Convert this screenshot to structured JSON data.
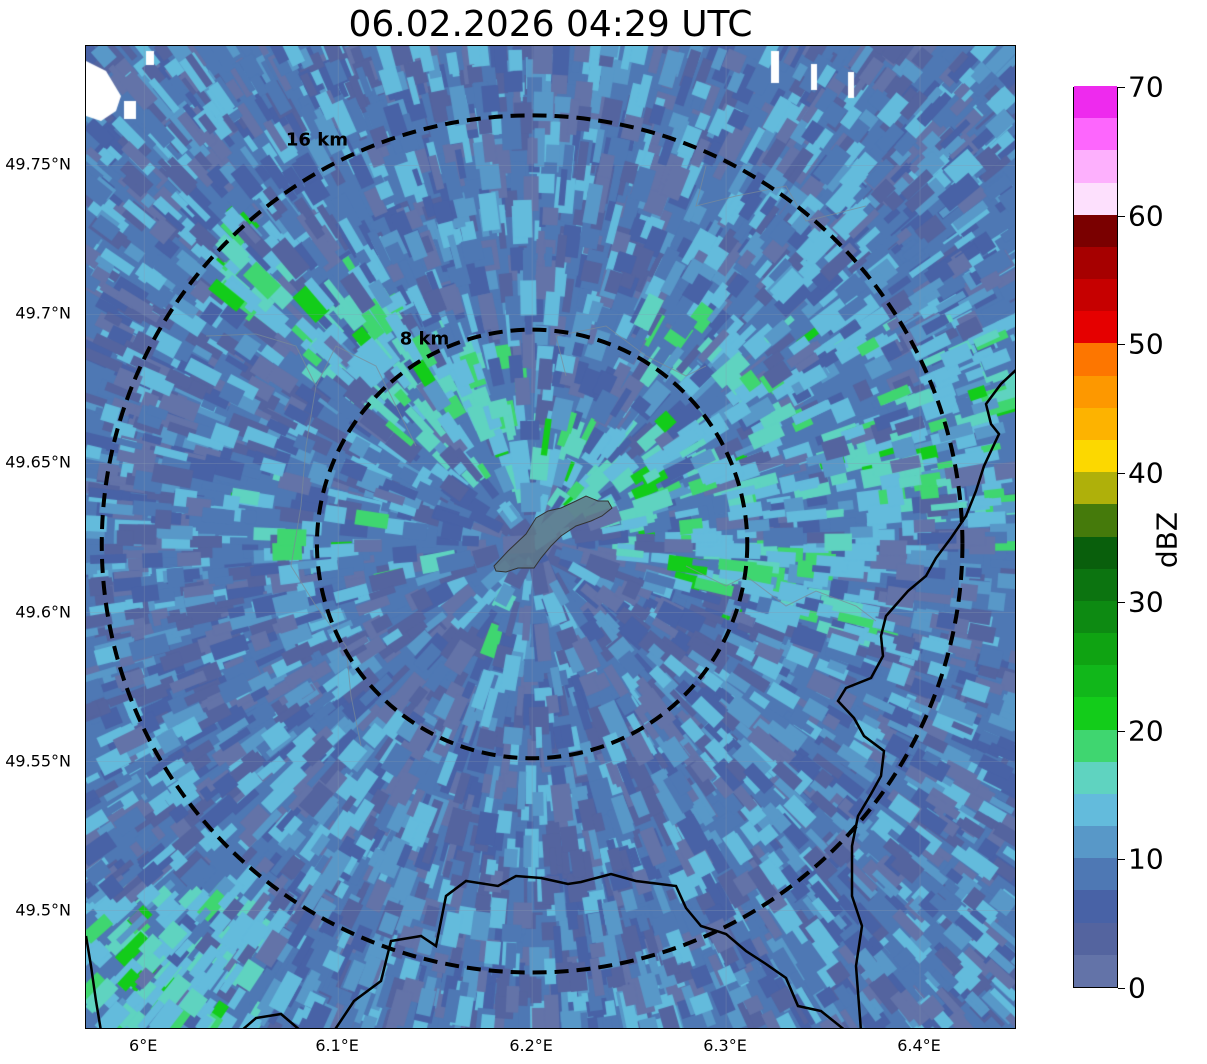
{
  "title": "06.02.2026 04:29 UTC",
  "map": {
    "lon_range": [
      5.97,
      6.45
    ],
    "lat_range": [
      49.46,
      49.79
    ],
    "center": {
      "lon": 6.2,
      "lat": 49.623
    },
    "range_rings": [
      {
        "label": "8 km",
        "radius_km": 8
      },
      {
        "label": "16 km",
        "radius_km": 16
      }
    ],
    "x_ticks": [
      {
        "lon": 6.0,
        "label": "6°E"
      },
      {
        "lon": 6.1,
        "label": "6.1°E"
      },
      {
        "lon": 6.2,
        "label": "6.2°E"
      },
      {
        "lon": 6.3,
        "label": "6.3°E"
      },
      {
        "lon": 6.4,
        "label": "6.4°E"
      }
    ],
    "y_ticks": [
      {
        "lat": 49.75,
        "label": "49.75°N"
      },
      {
        "lat": 49.7,
        "label": "49.7°N"
      },
      {
        "lat": 49.65,
        "label": "49.65°N"
      },
      {
        "lat": 49.6,
        "label": "49.6°N"
      },
      {
        "lat": 49.55,
        "label": "49.55°N"
      },
      {
        "lat": 49.5,
        "label": "49.5°N"
      }
    ],
    "gridlines": true,
    "background_reflectivity_dbz": "0-15",
    "enhanced_band": "15-22 dBZ, northern sector"
  },
  "colorbar": {
    "title": "dBZ",
    "min": 0,
    "max": 70,
    "step": 2.5,
    "tick_labels": [
      {
        "value": 0,
        "label": "0"
      },
      {
        "value": 10,
        "label": "10"
      },
      {
        "value": 20,
        "label": "20"
      },
      {
        "value": 30,
        "label": "30"
      },
      {
        "value": 40,
        "label": "40"
      },
      {
        "value": 50,
        "label": "50"
      },
      {
        "value": 60,
        "label": "60"
      },
      {
        "value": 70,
        "label": "70"
      }
    ],
    "colors": [
      "#6373a8",
      "#54649f",
      "#4862a6",
      "#4e78b4",
      "#5898c8",
      "#63bbdc",
      "#5fd3c0",
      "#3fd670",
      "#13cc1a",
      "#11b71a",
      "#0fa312",
      "#0d8a12",
      "#0c7410",
      "#095f0c",
      "#457a0b",
      "#afb00a",
      "#fcd800",
      "#fdb300",
      "#fd9800",
      "#fd7600",
      "#e50000",
      "#c60000",
      "#a60000",
      "#7a0000",
      "#fde0fd",
      "#fdb0fd",
      "#fd66fd",
      "#ee2aee"
    ]
  }
}
